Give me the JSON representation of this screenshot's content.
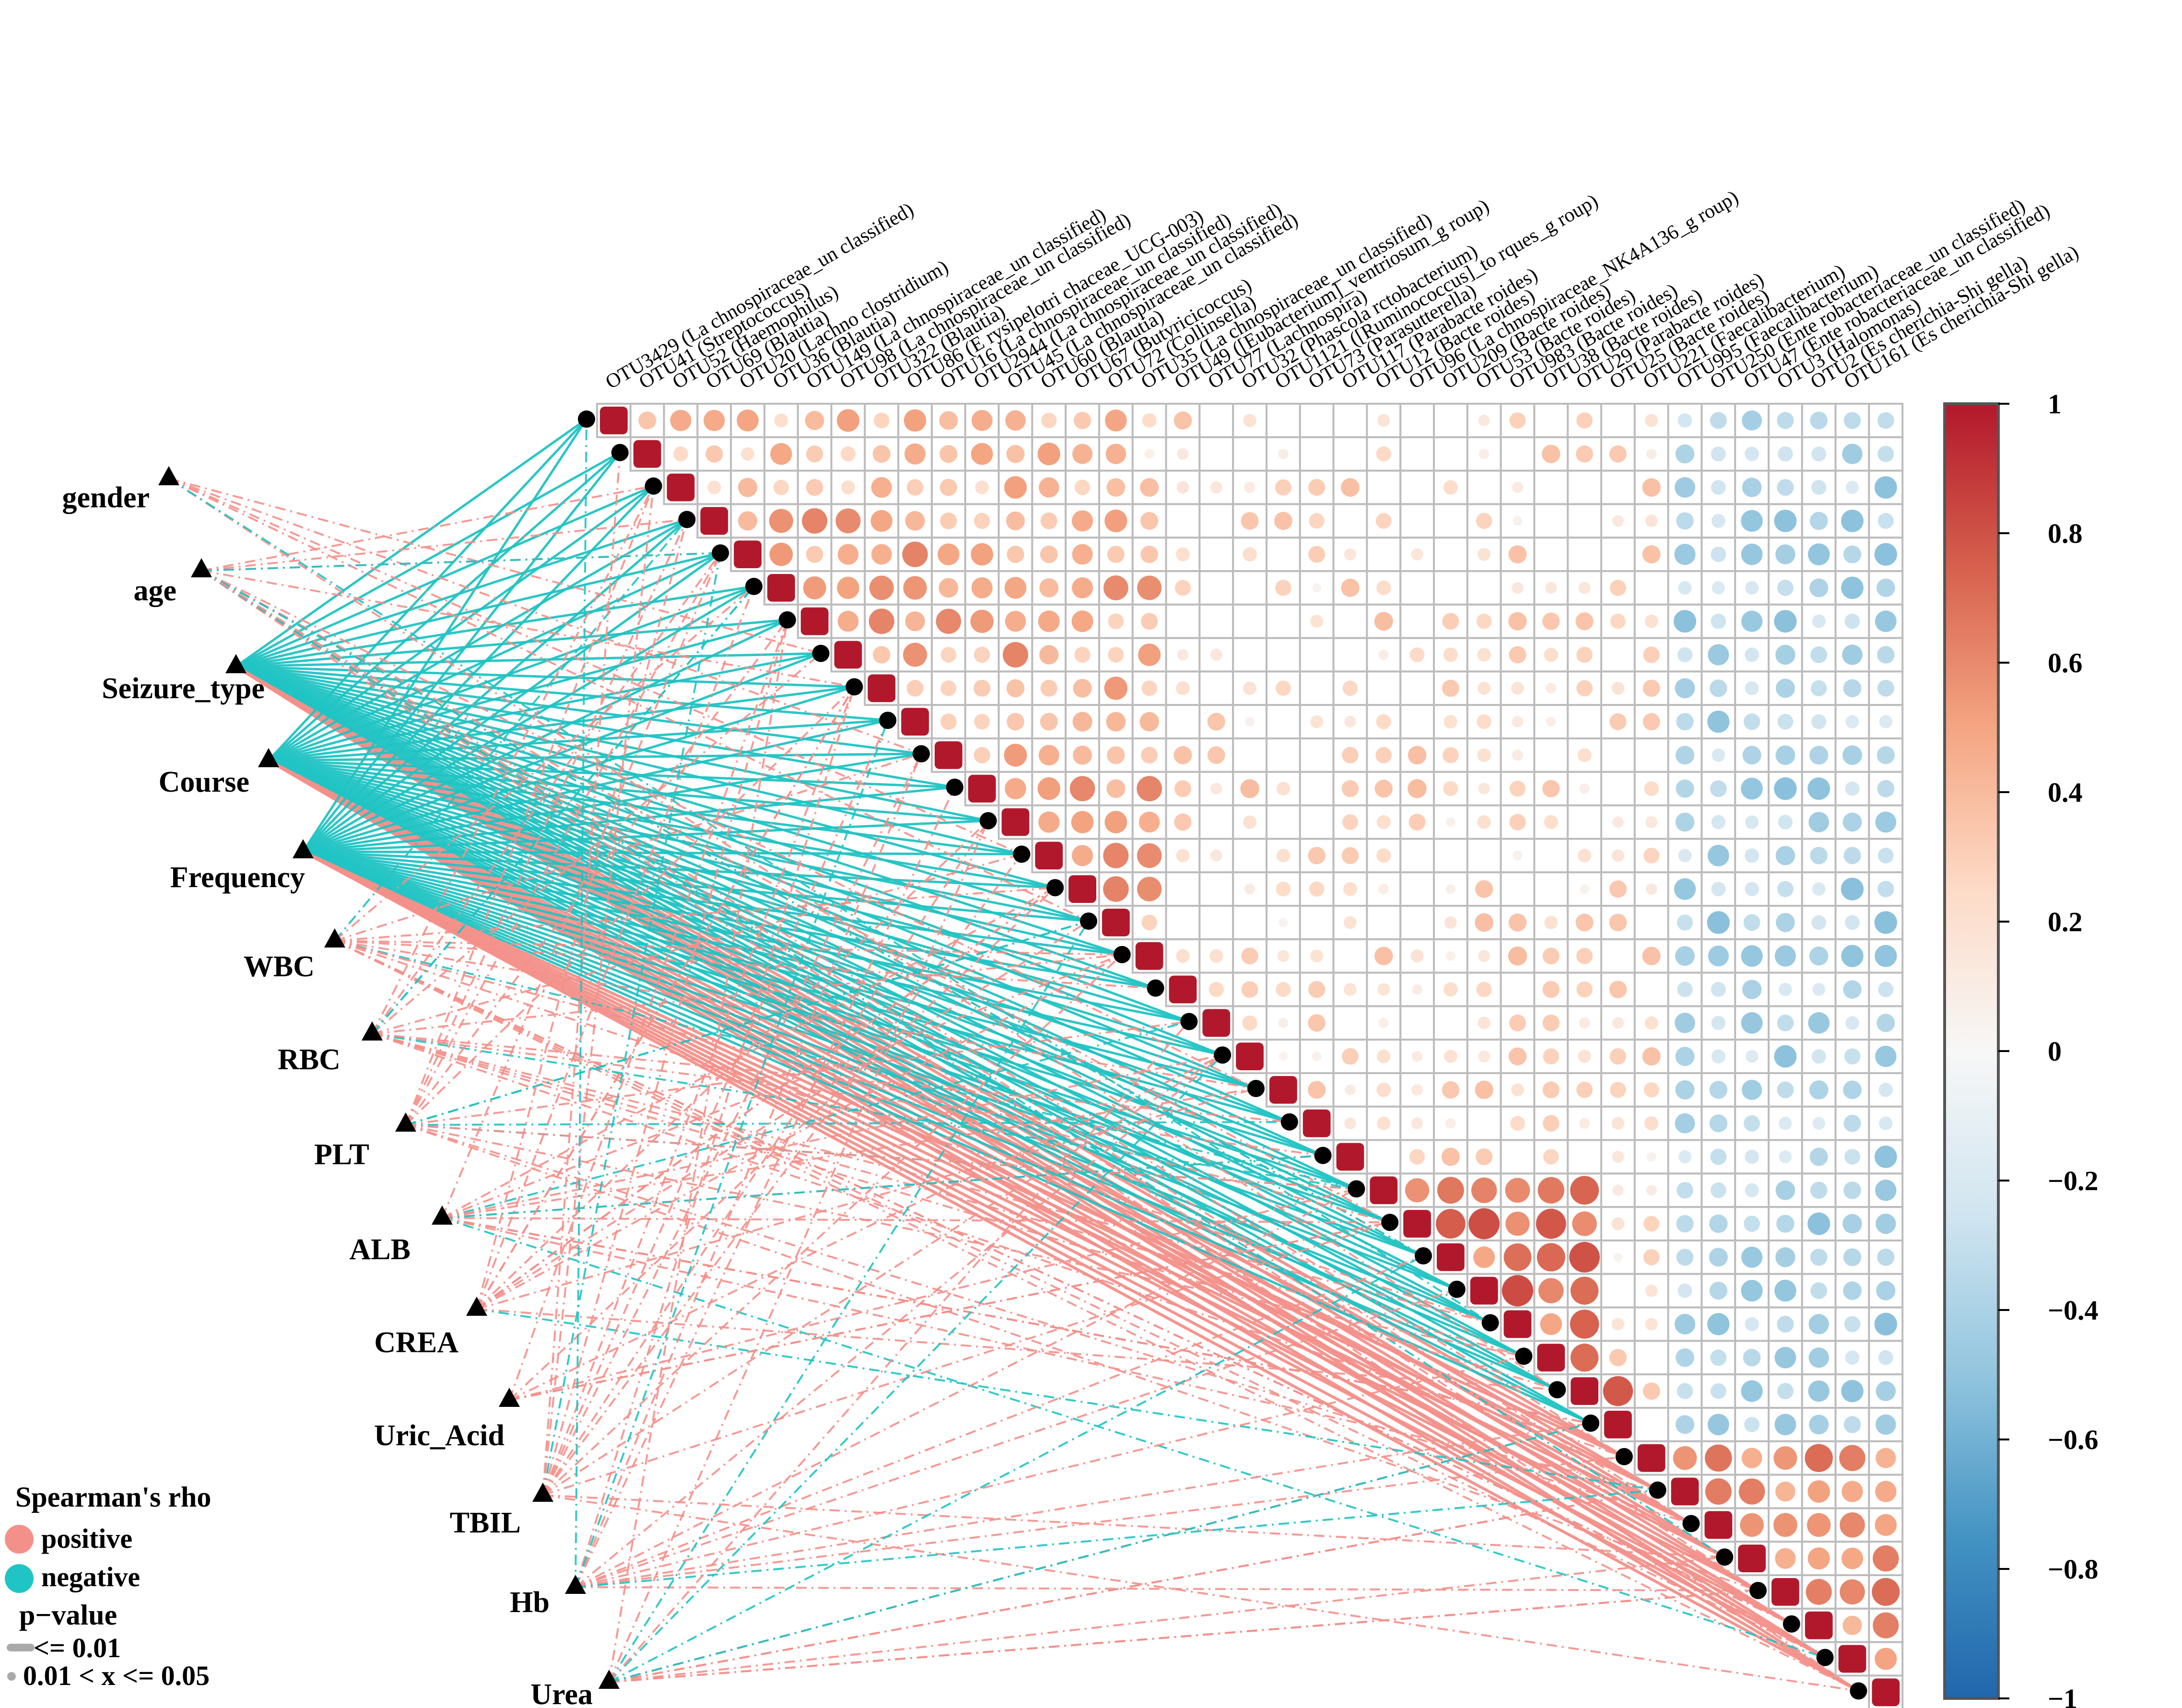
{
  "chart_data": {
    "type": "heatmap",
    "title": "",
    "n_otus": 39,
    "otu_labels": [
      "OTU3429 (La chnospiraceae_un classified)",
      "OTU41 (Streptococcus)",
      "OTU52 (Haemophilus)",
      "OTU69 (Blautia)",
      "OTU20 (Lachno clostridium)",
      "OTU36 (Blautia)",
      "OTU149 (La chnospiraceae_un classified)",
      "OTU98 (La chnospiraceae_un classified)",
      "OTU322 (Blautia)",
      "OTU86 (E rysipelotri chaceae_UCG-003)",
      "OTU16 (La chnospiraceae_un classified)",
      "OTU2944 (La chnospiraceae_un classified)",
      "OTU45 (La chnospiraceae_un classified)",
      "OTU60 (Blautia)",
      "OTU67 (Butyricicoccus)",
      "OTU72 (Collinsella)",
      "OTU35 (La chnospiraceae_un classified)",
      "OTU49 ([Eubacterium]_ventriosum_g roup)",
      "OTU77 (Lachnospira)",
      "OTU32 (Phascola rctobacterium)",
      "OTU1121 ([Ruminococcus]_to rques_g roup)",
      "OTU73 (Parasutterella)",
      "OTU117 (Parabacte roides)",
      "OTU12 (Bacte roides)",
      "OTU96 (La chnospiraceae_NK4A136_g roup)",
      "OTU209 (Bacte roides)",
      "OTU53 (Bacte roides)",
      "OTU983 (Bacte roides)",
      "OTU38 (Bacte roides)",
      "OTU29 (Parabacte roides)",
      "OTU25 (Bacte roides)",
      "OTU221 (Faecalibacterium)",
      "OTU995 (Faecalibacterium)",
      "OTU250 (Ente robacteriaceae_un classified)",
      "OTU47 (Ente robacteriaceae_un classified)",
      "OTU3 (Halomonas)",
      "OTU2 (Es cherichia-Shi gella)",
      "OTU161 (Es cherichia-Shi gella)",
      ""
    ],
    "variables": [
      "gender",
      "age",
      "Seizure_type",
      "Course",
      "Frequency",
      "WBC",
      "RBC",
      "PLT",
      "ALB",
      "CREA",
      "Uric_Acid",
      "TBIL",
      "Hb",
      "Urea"
    ],
    "matrix_blocks": [
      {
        "range": [
          0,
          16
        ],
        "rho": 0.35
      },
      {
        "range": [
          3,
          17
        ],
        "rho": 0.45
      },
      {
        "range": [
          17,
          25
        ],
        "rho": 0.3
      },
      {
        "range": [
          17,
          32
        ],
        "rho": 0.2
      },
      {
        "range": [
          23,
          30
        ],
        "rho": 0.65
      },
      {
        "range": [
          29,
          31
        ],
        "rho": 0.8
      },
      {
        "range": [
          31,
          39
        ],
        "rho": 0.55
      }
    ],
    "negative_block": {
      "rows": [
        0,
        31
      ],
      "cols": [
        32,
        39
      ],
      "rho": -0.35
    },
    "colorbar": {
      "range": [
        -1,
        1
      ],
      "ticks": [
        "1",
        "0.8",
        "0.6",
        "0.4",
        "0.2",
        "0",
        "−0.2",
        "−0.4",
        "−0.6",
        "−0.8",
        "−1"
      ],
      "colors": [
        "#b2182b",
        "#d6604d",
        "#f4a582",
        "#fddbc7",
        "#f7f7f7",
        "#d1e5f0",
        "#92c5de",
        "#4393c3",
        "#2166ac"
      ]
    },
    "mantel_links": {
      "negative_color": "#20c4c4",
      "positive_color": "#f4908a",
      "strong_negative_sources": [
        "Seizure_type",
        "Course",
        "Frequency"
      ],
      "positive_targets": [
        "RBC",
        "ALB",
        "Hb",
        "Urea"
      ]
    },
    "legend": {
      "title": "Spearman's rho",
      "positive": "positive",
      "negative": "negative",
      "pvalue_title": "p−value",
      "p_strong": "<= 0.01",
      "p_weak": "0.01 < x <= 0.05"
    }
  }
}
